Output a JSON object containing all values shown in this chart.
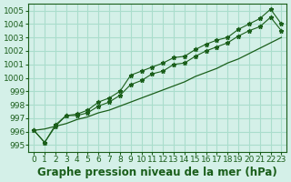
{
  "hours": [
    0,
    1,
    2,
    3,
    4,
    5,
    6,
    7,
    8,
    9,
    10,
    11,
    12,
    13,
    14,
    15,
    16,
    17,
    18,
    19,
    20,
    21,
    22,
    23
  ],
  "trend": [
    996.1,
    996.2,
    996.4,
    996.6,
    996.9,
    997.1,
    997.4,
    997.6,
    997.9,
    998.2,
    998.5,
    998.8,
    999.1,
    999.4,
    999.7,
    1000.1,
    1000.4,
    1000.7,
    1001.1,
    1001.4,
    1001.8,
    1002.2,
    1002.6,
    1003.0
  ],
  "zigzag_high": [
    996.1,
    995.2,
    996.5,
    997.2,
    997.3,
    997.6,
    998.2,
    998.5,
    999.0,
    1000.2,
    1000.5,
    1000.8,
    1001.1,
    1001.5,
    1001.6,
    1002.1,
    1002.5,
    1002.8,
    1003.0,
    1003.6,
    1004.0,
    1004.4,
    1005.1,
    1004.0
  ],
  "zigzag_low": [
    996.1,
    995.2,
    996.4,
    997.2,
    997.2,
    997.4,
    997.9,
    998.2,
    998.7,
    999.5,
    999.8,
    1000.3,
    1000.5,
    1001.0,
    1001.1,
    1001.6,
    1002.0,
    1002.3,
    1002.6,
    1003.1,
    1003.5,
    1003.8,
    1004.5,
    1003.5
  ],
  "line_color": "#1a5e1a",
  "marker": "*",
  "bg_color": "#d4f0e8",
  "grid_color": "#aaddcc",
  "title": "Graphe pression niveau de la mer (hPa)",
  "ylim": [
    994.5,
    1005.5
  ],
  "xlim": [
    -0.5,
    23.5
  ],
  "yticks": [
    995,
    996,
    997,
    998,
    999,
    1000,
    1001,
    1002,
    1003,
    1004,
    1005
  ],
  "xticks": [
    0,
    1,
    2,
    3,
    4,
    5,
    6,
    7,
    8,
    9,
    10,
    11,
    12,
    13,
    14,
    15,
    16,
    17,
    18,
    19,
    20,
    21,
    22,
    23
  ],
  "title_fontsize": 8.5,
  "tick_fontsize": 6.5
}
